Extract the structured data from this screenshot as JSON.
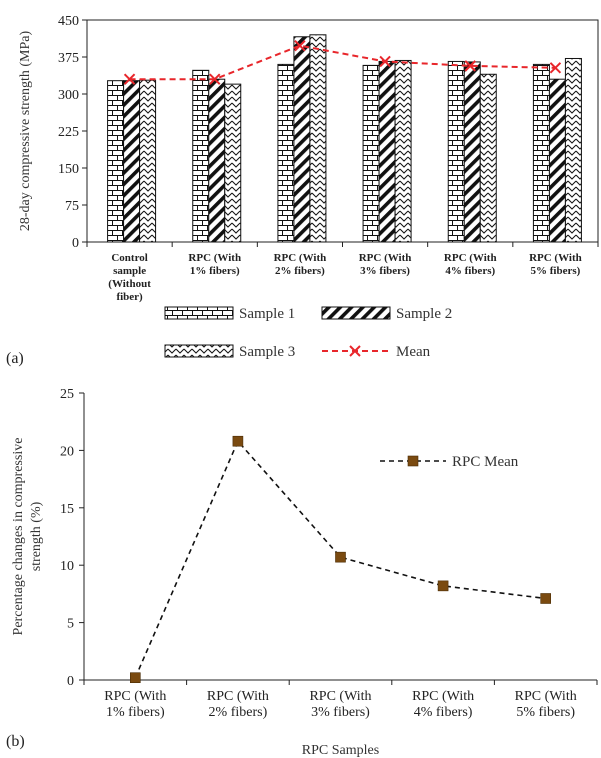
{
  "chart_data": [
    {
      "panel_label": "(a)",
      "type": "bar",
      "ylabel": "28-day compressive strength (MPa)",
      "ylim": [
        0,
        450
      ],
      "yticks": [
        0,
        75,
        150,
        225,
        300,
        375,
        450
      ],
      "categories": [
        [
          "Control",
          "sample",
          "(Without",
          "fiber)"
        ],
        [
          "RPC (With",
          "1% fibers)"
        ],
        [
          "RPC (With",
          "2% fibers)"
        ],
        [
          "RPC (With",
          "3% fibers)"
        ],
        [
          "RPC (With",
          "4% fibers)"
        ],
        [
          "RPC (With",
          "5% fibers)"
        ]
      ],
      "series": [
        {
          "name": "Sample 1",
          "pattern": "brick",
          "values": [
            327,
            348,
            360,
            358,
            366,
            360
          ]
        },
        {
          "name": "Sample 2",
          "pattern": "diagonal",
          "values": [
            327,
            330,
            416,
            366,
            365,
            330
          ]
        },
        {
          "name": "Sample 3",
          "pattern": "zigzag",
          "values": [
            328,
            320,
            420,
            368,
            340,
            372
          ]
        }
      ],
      "mean": {
        "name": "Mean",
        "color": "#e8262b",
        "values": [
          330,
          330,
          398,
          366,
          357,
          353
        ]
      },
      "grid": false,
      "legend_position": "bottom"
    },
    {
      "panel_label": "(b)",
      "type": "line",
      "xlabel": "RPC Samples",
      "ylabel": [
        "Percentage changes in compressive",
        "strength (%)"
      ],
      "ylim": [
        0,
        25
      ],
      "yticks": [
        0,
        5,
        10,
        15,
        20,
        25
      ],
      "categories": [
        [
          "RPC (With",
          "1% fibers)"
        ],
        [
          "RPC (With",
          "2% fibers)"
        ],
        [
          "RPC (With",
          "3% fibers)"
        ],
        [
          "RPC (With",
          "4% fibers)"
        ],
        [
          "RPC (With",
          "5% fibers)"
        ]
      ],
      "series": [
        {
          "name": "RPC Mean",
          "color": "#7a4a10",
          "values": [
            0.2,
            20.8,
            10.7,
            8.2,
            7.1
          ]
        }
      ],
      "grid": false,
      "legend_position": "top-right"
    }
  ]
}
